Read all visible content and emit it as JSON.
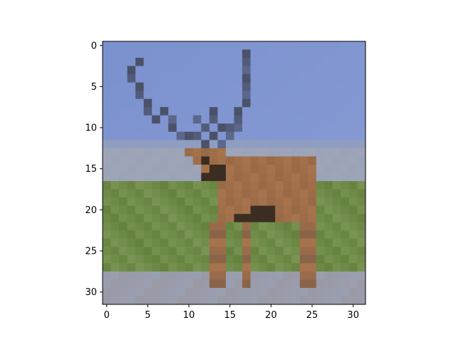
{
  "chart_data": {
    "type": "heatmap",
    "title": "",
    "xlabel": "",
    "ylabel": "",
    "grid": false,
    "xlim": [
      -0.5,
      31.5
    ],
    "ylim": [
      31.5,
      -0.5
    ],
    "x_ticks": [
      0,
      5,
      10,
      15,
      20,
      25,
      30
    ],
    "y_ticks": [
      0,
      5,
      10,
      15,
      20,
      25,
      30
    ],
    "x_tick_labels": [
      "0",
      "5",
      "10",
      "15",
      "20",
      "25",
      "30"
    ],
    "y_tick_labels": [
      "0",
      "5",
      "10",
      "15",
      "20",
      "25",
      "30"
    ],
    "image": {
      "width": 32,
      "height": 32,
      "subject": "deer with large antlers standing on grass",
      "colors": {
        "sky": "#7b91cf",
        "sky_light": "#8ea2d6",
        "horizon": "#9aa3b8",
        "grass_light": "#7f9a58",
        "grass_dark": "#66823f",
        "ground": "#9a9aa6",
        "deer_body": "#a6734c",
        "deer_dark": "#3c2d22",
        "antler": "#4a5168"
      }
    }
  }
}
